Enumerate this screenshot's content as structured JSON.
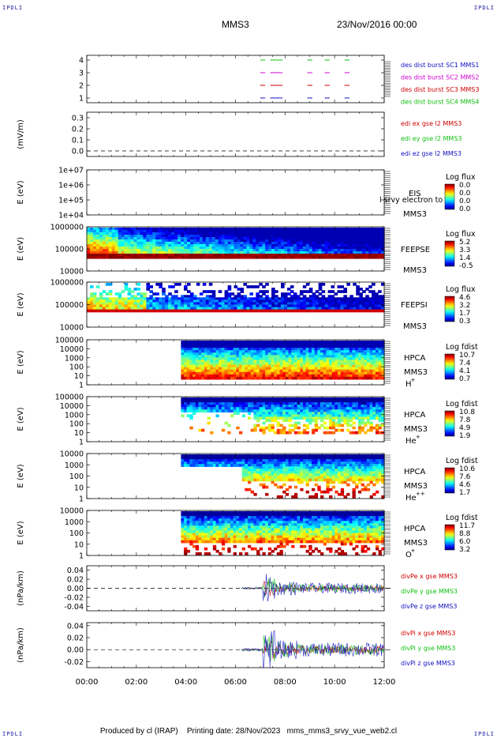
{
  "header": {
    "corner_label": "IPDLI",
    "spacecraft": "MMS3",
    "date": "23/Nov/2016 00:00"
  },
  "footer": {
    "produced_by": "Produced by cl (IRAP)",
    "printing_date": "Printing date: 28/Nov/2023",
    "filename": "mms_mms3_srvy_vue_web2.cl"
  },
  "x_axis": {
    "range_hours": [
      0,
      12
    ],
    "ticks": [
      "00:00",
      "02:00",
      "04:00",
      "06:00",
      "08:00",
      "10:00",
      "12:00"
    ]
  },
  "colors": {
    "red": "#d00000",
    "green": "#10c010",
    "blue": "#1010c0",
    "magenta": "#d000d0"
  },
  "chart_data": [
    {
      "type": "line",
      "panel": "burst",
      "yticks": [
        "4",
        "3",
        "2",
        "1"
      ],
      "ylim": [
        0.5,
        4.5
      ],
      "legend": [
        {
          "label": "des dist burst SC1 MMS1",
          "color": "#1010c0"
        },
        {
          "label": "des dist burst SC2 MMS2",
          "color": "#d000d0"
        },
        {
          "label": "des dist burst SC3 MMS3",
          "color": "#d00000"
        },
        {
          "label": "des dist burst SC4 MMS4",
          "color": "#10c010"
        }
      ],
      "segments_hours": [
        [
          7.0,
          7.2
        ],
        [
          7.4,
          7.9
        ],
        [
          8.9,
          9.1
        ],
        [
          9.6,
          9.8
        ],
        [
          10.4,
          10.6
        ]
      ]
    },
    {
      "type": "line",
      "panel": "edi",
      "ylabel": "(mV/m)",
      "yticks": [
        "0.3",
        "0.2",
        "0.1",
        "0.0"
      ],
      "ylim": [
        -0.05,
        0.35
      ],
      "legend": [
        {
          "label": "edi ex gse l2 MMS3",
          "color": "#d00000"
        },
        {
          "label": "edi ey gse l2 MMS3",
          "color": "#10c010"
        },
        {
          "label": "edi ez gse l2 MMS3",
          "color": "#1010c0"
        }
      ]
    },
    {
      "type": "heatmap",
      "panel": "eis",
      "ylabel": "E (eV)",
      "yticks": [
        "1e+07",
        "1e+06",
        "1e+05",
        "1e+04"
      ],
      "labels": [
        "EIS",
        "MMS3"
      ],
      "overlay_text": "l srvy electron to",
      "colorbar_title": "Log flux",
      "colorbar_ticks": [
        "0.0",
        "0.0",
        "0.0",
        "0.0"
      ]
    },
    {
      "type": "heatmap",
      "panel": "feepse",
      "ylabel": "E (eV)",
      "yticks": [
        "1000000",
        "100000",
        "10000"
      ],
      "labels": [
        "FEEPSE",
        "MMS3"
      ],
      "colorbar_title": "Log flux",
      "colorbar_ticks": [
        "5.2",
        "3.3",
        "1.4",
        "-0.5"
      ]
    },
    {
      "type": "heatmap",
      "panel": "feepsi",
      "ylabel": "E (eV)",
      "yticks": [
        "1000000",
        "100000",
        "10000"
      ],
      "labels": [
        "FEEPSI",
        "MMS3"
      ],
      "colorbar_title": "Log flux",
      "colorbar_ticks": [
        "4.6",
        "3.2",
        "1.7",
        "0.3"
      ]
    },
    {
      "type": "heatmap",
      "panel": "hpca-h",
      "ylabel": "E (eV)",
      "yticks": [
        "100000",
        "10000",
        "1000",
        "100",
        "10",
        "1"
      ],
      "labels": [
        "HPCA",
        "MMS3",
        "H",
        "+"
      ],
      "colorbar_title": "Log fdist",
      "colorbar_ticks": [
        "10.7",
        "7.4",
        "4.1",
        "0.7"
      ]
    },
    {
      "type": "heatmap",
      "panel": "hpca-he",
      "ylabel": "E (eV)",
      "yticks": [
        "100000",
        "10000",
        "1000",
        "100",
        "10",
        "1"
      ],
      "labels": [
        "HPCA",
        "MMS3",
        "He",
        "+"
      ],
      "colorbar_title": "Log fdist",
      "colorbar_ticks": [
        "10.8",
        "7.8",
        "4.9",
        "1.9"
      ]
    },
    {
      "type": "heatmap",
      "panel": "hpca-he2",
      "ylabel": "E (eV)",
      "yticks": [
        "10000",
        "1000",
        "100",
        "10",
        "1"
      ],
      "labels": [
        "HPCA",
        "MMS3",
        "He",
        "++"
      ],
      "colorbar_title": "Log fdist",
      "colorbar_ticks": [
        "10.6",
        "7.6",
        "4.6",
        "1.7"
      ]
    },
    {
      "type": "heatmap",
      "panel": "hpca-o",
      "ylabel": "E (eV)",
      "yticks": [
        "10000",
        "1000",
        "100",
        "10",
        "1"
      ],
      "labels": [
        "HPCA",
        "MMS3",
        "O",
        "+"
      ],
      "colorbar_title": "Log fdist",
      "colorbar_ticks": [
        "11.7",
        "8.8",
        "6.0",
        "3.2"
      ]
    },
    {
      "type": "line",
      "panel": "divpe",
      "ylabel": "(nPa/km)",
      "yticks": [
        "0.04",
        "0.02",
        "0.00",
        "-0.02",
        "-0.04"
      ],
      "ylim": [
        -0.05,
        0.05
      ],
      "legend": [
        {
          "label": "divPe x gse MMS3",
          "color": "#d00000"
        },
        {
          "label": "divPe y gse MMS3",
          "color": "#10c010"
        },
        {
          "label": "divPe z gse MMS3",
          "color": "#1010c0"
        }
      ]
    },
    {
      "type": "line",
      "panel": "divpi",
      "ylabel": "(nPa/km)",
      "yticks": [
        "0.04",
        "0.02",
        "0.00",
        "-0.02"
      ],
      "ylim": [
        -0.03,
        0.045
      ],
      "legend": [
        {
          "label": "divPi x gse MMS3",
          "color": "#d00000"
        },
        {
          "label": "divPi y gse MMS3",
          "color": "#10c010"
        },
        {
          "label": "divPi z gse MMS3",
          "color": "#1010c0"
        }
      ]
    }
  ]
}
